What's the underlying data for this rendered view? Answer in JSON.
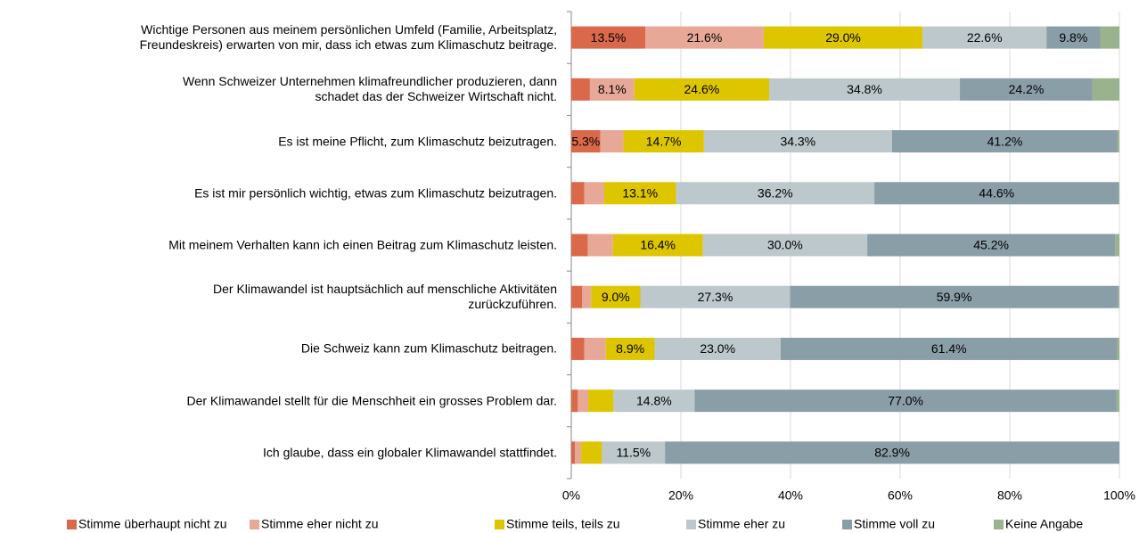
{
  "chart_data": {
    "type": "stacked-barh",
    "categories": [
      "Wichtige Personen aus meinem persönlichen Umfeld (Familie, Arbeitsplatz,\nFreundeskreis) erwarten von mir, dass ich etwas zum Klimaschutz beitrage.",
      "Wenn Schweizer Unternehmen klimafreundlicher produzieren, dann\nschadet das der Schweizer Wirtschaft nicht.",
      "Es ist meine Pflicht, zum Klimaschutz beizutragen.",
      "Es ist mir persönlich wichtig, etwas zum Klimaschutz beizutragen.",
      "Mit meinem Verhalten kann ich einen Beitrag zum Klimaschutz leisten.",
      "Der Klimawandel ist hauptsächlich auf menschliche Aktivitäten\nzurückzuführen.",
      "Die Schweiz kann zum Klimaschutz beitragen.",
      "Der Klimawandel stellt für die Menschheit ein grosses Problem dar.",
      "Ich glaube, dass ein globaler Klimawandel stattfindet."
    ],
    "series": [
      {
        "name": "Stimme überhaupt nicht zu",
        "color": "#d9694a",
        "values": [
          13.5,
          3.4,
          5.3,
          2.4,
          3.0,
          2.0,
          2.4,
          1.2,
          0.7
        ],
        "value_labels": [
          "13.5%",
          null,
          "5.3%",
          null,
          null,
          null,
          null,
          null,
          null
        ]
      },
      {
        "name": "Stimme eher nicht zu",
        "color": "#e8a898",
        "values": [
          21.6,
          8.1,
          4.2,
          3.6,
          4.6,
          1.6,
          3.9,
          1.9,
          1.1
        ],
        "value_labels": [
          "21.6%",
          "8.1%",
          null,
          null,
          null,
          null,
          null,
          null,
          null
        ]
      },
      {
        "name": "Stimme teils, teils zu",
        "color": "#ddc600",
        "values": [
          29.0,
          24.6,
          14.7,
          13.1,
          16.4,
          9.0,
          8.9,
          4.6,
          3.8
        ],
        "value_labels": [
          "29.0%",
          "24.6%",
          "14.7%",
          "13.1%",
          "16.4%",
          "9.0%",
          "8.9%",
          null,
          null
        ]
      },
      {
        "name": "Stimme eher zu",
        "color": "#bcc8cc",
        "values": [
          22.6,
          34.8,
          34.3,
          36.2,
          30.0,
          27.3,
          23.0,
          14.8,
          11.5
        ],
        "value_labels": [
          "22.6%",
          "34.8%",
          "34.3%",
          "36.2%",
          "30.0%",
          "27.3%",
          "23.0%",
          "14.8%",
          "11.5%"
        ]
      },
      {
        "name": "Stimme voll zu",
        "color": "#8a9ea8",
        "values": [
          9.8,
          24.2,
          41.2,
          44.6,
          45.2,
          59.9,
          61.4,
          77.0,
          82.9
        ],
        "value_labels": [
          "9.8%",
          "24.2%",
          "41.2%",
          "44.6%",
          "45.2%",
          "59.9%",
          "61.4%",
          "77.0%",
          "82.9%"
        ]
      },
      {
        "name": "Keine Angabe",
        "color": "#9bb28f",
        "values": [
          3.5,
          4.9,
          0.3,
          0.1,
          0.8,
          0.2,
          0.4,
          0.5,
          0.0
        ],
        "value_labels": [
          null,
          null,
          null,
          null,
          null,
          null,
          null,
          null,
          null
        ]
      }
    ],
    "xlim": [
      0,
      100
    ],
    "xticks": [
      {
        "value": 0,
        "label": "0%"
      },
      {
        "value": 20,
        "label": "20%"
      },
      {
        "value": 40,
        "label": "40%"
      },
      {
        "value": 60,
        "label": "60%"
      },
      {
        "value": 80,
        "label": "80%"
      },
      {
        "value": 100,
        "label": "100%"
      }
    ],
    "grid": true,
    "legend": "bottom"
  }
}
